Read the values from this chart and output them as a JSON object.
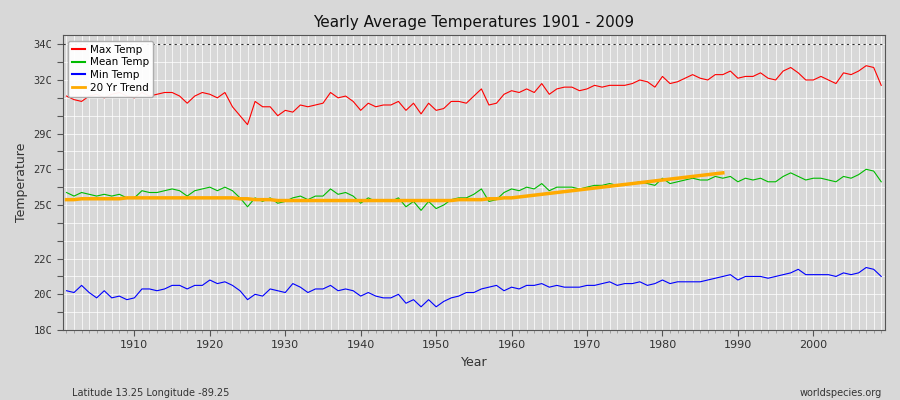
{
  "title": "Yearly Average Temperatures 1901 - 2009",
  "xlabel": "Year",
  "ylabel": "Temperature",
  "lat_lon_label": "Latitude 13.25 Longitude -89.25",
  "watermark": "worldspecies.org",
  "year_start": 1901,
  "year_end": 2009,
  "ylim": [
    18,
    34.5
  ],
  "ytick_labeled": [
    18,
    20,
    22,
    25,
    27,
    29,
    32,
    34
  ],
  "ytick_all": [
    18,
    19,
    20,
    21,
    22,
    23,
    24,
    25,
    26,
    27,
    28,
    29,
    30,
    31,
    32,
    33,
    34
  ],
  "xticks_labeled": [
    1910,
    1920,
    1930,
    1940,
    1950,
    1960,
    1970,
    1980,
    1990,
    2000
  ],
  "bg_color": "#d8d8d8",
  "plot_bg_color": "#d8d8d8",
  "grid_color": "#ffffff",
  "max_temp_color": "#ff0000",
  "mean_temp_color": "#00bb00",
  "min_temp_color": "#0000ff",
  "trend_color": "#ffaa00",
  "dotted_line_y": 34,
  "legend_labels": [
    "Max Temp",
    "Mean Temp",
    "Min Temp",
    "20 Yr Trend"
  ],
  "max_temp": [
    31.1,
    30.9,
    30.8,
    31.1,
    31.2,
    31.0,
    31.2,
    31.3,
    31.1,
    31.0,
    31.3,
    31.1,
    31.2,
    31.3,
    31.3,
    31.1,
    30.7,
    31.1,
    31.3,
    31.2,
    31.0,
    31.3,
    30.5,
    30.0,
    29.5,
    30.8,
    30.5,
    30.5,
    30.0,
    30.3,
    30.2,
    30.6,
    30.5,
    30.6,
    30.7,
    31.3,
    31.0,
    31.1,
    30.8,
    30.3,
    30.7,
    30.5,
    30.6,
    30.6,
    30.8,
    30.3,
    30.7,
    30.1,
    30.7,
    30.3,
    30.4,
    30.8,
    30.8,
    30.7,
    31.1,
    31.5,
    30.6,
    30.7,
    31.2,
    31.4,
    31.3,
    31.5,
    31.3,
    31.8,
    31.2,
    31.5,
    31.6,
    31.6,
    31.4,
    31.5,
    31.7,
    31.6,
    31.7,
    31.7,
    31.7,
    31.8,
    32.0,
    31.9,
    31.6,
    32.2,
    31.8,
    31.9,
    32.1,
    32.3,
    32.1,
    32.0,
    32.3,
    32.3,
    32.5,
    32.1,
    32.2,
    32.2,
    32.4,
    32.1,
    32.0,
    32.5,
    32.7,
    32.4,
    32.0,
    32.0,
    32.2,
    32.0,
    31.8,
    32.4,
    32.3,
    32.5,
    32.8,
    32.7,
    31.7
  ],
  "mean_temp": [
    25.7,
    25.5,
    25.7,
    25.6,
    25.5,
    25.6,
    25.5,
    25.6,
    25.4,
    25.4,
    25.8,
    25.7,
    25.7,
    25.8,
    25.9,
    25.8,
    25.5,
    25.8,
    25.9,
    26.0,
    25.8,
    26.0,
    25.8,
    25.4,
    24.9,
    25.4,
    25.2,
    25.4,
    25.1,
    25.2,
    25.4,
    25.5,
    25.3,
    25.5,
    25.5,
    25.9,
    25.6,
    25.7,
    25.5,
    25.1,
    25.4,
    25.2,
    25.2,
    25.2,
    25.4,
    24.9,
    25.2,
    24.7,
    25.2,
    24.8,
    25.0,
    25.3,
    25.4,
    25.4,
    25.6,
    25.9,
    25.2,
    25.3,
    25.7,
    25.9,
    25.8,
    26.0,
    25.9,
    26.2,
    25.8,
    26.0,
    26.0,
    26.0,
    25.9,
    26.0,
    26.1,
    26.1,
    26.2,
    26.1,
    26.2,
    26.2,
    26.3,
    26.2,
    26.1,
    26.5,
    26.2,
    26.3,
    26.4,
    26.5,
    26.4,
    26.4,
    26.6,
    26.5,
    26.6,
    26.3,
    26.5,
    26.4,
    26.5,
    26.3,
    26.3,
    26.6,
    26.8,
    26.6,
    26.4,
    26.5,
    26.5,
    26.4,
    26.3,
    26.6,
    26.5,
    26.7,
    27.0,
    26.9,
    26.3
  ],
  "min_temp": [
    20.2,
    20.1,
    20.5,
    20.1,
    19.8,
    20.2,
    19.8,
    19.9,
    19.7,
    19.8,
    20.3,
    20.3,
    20.2,
    20.3,
    20.5,
    20.5,
    20.3,
    20.5,
    20.5,
    20.8,
    20.6,
    20.7,
    20.5,
    20.2,
    19.7,
    20.0,
    19.9,
    20.3,
    20.2,
    20.1,
    20.6,
    20.4,
    20.1,
    20.3,
    20.3,
    20.5,
    20.2,
    20.3,
    20.2,
    19.9,
    20.1,
    19.9,
    19.8,
    19.8,
    20.0,
    19.5,
    19.7,
    19.3,
    19.7,
    19.3,
    19.6,
    19.8,
    19.9,
    20.1,
    20.1,
    20.3,
    20.4,
    20.5,
    20.2,
    20.4,
    20.3,
    20.5,
    20.5,
    20.6,
    20.4,
    20.5,
    20.4,
    20.4,
    20.4,
    20.5,
    20.5,
    20.6,
    20.7,
    20.5,
    20.6,
    20.6,
    20.7,
    20.5,
    20.6,
    20.8,
    20.6,
    20.7,
    20.7,
    20.7,
    20.7,
    20.8,
    20.9,
    21.0,
    21.1,
    20.8,
    21.0,
    21.0,
    21.0,
    20.9,
    21.0,
    21.1,
    21.2,
    21.4,
    21.1,
    21.1,
    21.1,
    21.1,
    21.0,
    21.2,
    21.1,
    21.2,
    21.5,
    21.4,
    21.0
  ],
  "trend": [
    25.3,
    25.3,
    25.35,
    25.35,
    25.35,
    25.35,
    25.35,
    25.35,
    25.4,
    25.4,
    25.4,
    25.4,
    25.4,
    25.4,
    25.4,
    25.4,
    25.4,
    25.4,
    25.4,
    25.4,
    25.4,
    25.4,
    25.4,
    25.35,
    25.35,
    25.3,
    25.3,
    25.3,
    25.25,
    25.25,
    25.25,
    25.25,
    25.25,
    25.25,
    25.25,
    25.25,
    25.25,
    25.25,
    25.25,
    25.25,
    25.25,
    25.25,
    25.25,
    25.25,
    25.25,
    25.25,
    25.25,
    25.25,
    25.25,
    25.25,
    25.25,
    25.25,
    25.3,
    25.3,
    25.3,
    25.3,
    25.35,
    25.35,
    25.4,
    25.4,
    25.45,
    25.5,
    25.55,
    25.6,
    25.65,
    25.7,
    25.75,
    25.8,
    25.85,
    25.9,
    25.95,
    26.0,
    26.05,
    26.1,
    26.15,
    26.2,
    26.25,
    26.3,
    26.35,
    26.4,
    26.45,
    26.5,
    26.55,
    26.6,
    26.65,
    26.7,
    26.75,
    26.8,
    null,
    null,
    null,
    null,
    null,
    null,
    null,
    null,
    null,
    null,
    null,
    null,
    null
  ]
}
